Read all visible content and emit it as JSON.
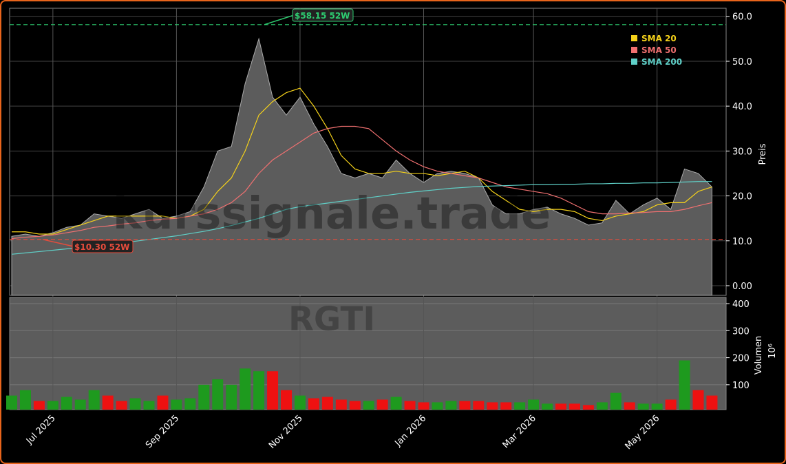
{
  "chart_data": [
    {
      "type": "line",
      "ticker": "RGTI",
      "watermark": "kurssignale.trade",
      "y_label": "Preis",
      "ylim": [
        -2.15,
        61.8
      ],
      "yticks": [
        {
          "value": 0,
          "label": "0.00"
        },
        {
          "value": 10,
          "label": "10.0"
        },
        {
          "value": 20,
          "label": "20.0"
        },
        {
          "value": 30,
          "label": "30.0"
        },
        {
          "value": 40,
          "label": "40.0"
        },
        {
          "value": 50,
          "label": "50.0"
        },
        {
          "value": 60,
          "label": "60.0"
        }
      ],
      "grid": true,
      "area_color": "#5c5c5c",
      "close": [
        11,
        11.5,
        11,
        11.8,
        13,
        13.5,
        16,
        15.5,
        15,
        16,
        17,
        15,
        15.5,
        16.5,
        22,
        30,
        31,
        45,
        55,
        42,
        38,
        42,
        36,
        31,
        25,
        24,
        25,
        24,
        28,
        25,
        23,
        25,
        25.5,
        25,
        24,
        18,
        16,
        16,
        17,
        17.5,
        16,
        15,
        13.5,
        14,
        19,
        16,
        18,
        19.5,
        17,
        26,
        25,
        22
      ],
      "series": [
        {
          "name": "SMA 20",
          "color": "#f5d21a",
          "values": [
            12,
            12,
            11.5,
            11.5,
            12.5,
            13.5,
            14.5,
            15.5,
            15.5,
            15.5,
            15.5,
            15.5,
            15,
            15.5,
            17,
            21,
            24,
            30,
            38,
            41,
            43,
            44,
            40,
            35,
            29,
            26,
            25,
            25,
            25.5,
            25,
            25,
            24.5,
            25,
            25.5,
            24,
            21,
            19,
            17,
            16.5,
            17,
            17,
            16.5,
            15,
            14.5,
            15.5,
            16,
            16.5,
            18,
            18.5,
            18.5,
            21,
            22
          ]
        },
        {
          "name": "SMA 50",
          "color": "#f07070",
          "values": [
            10.5,
            10.8,
            11,
            11.3,
            11.8,
            12.3,
            13,
            13.3,
            13.7,
            14,
            14.5,
            14.8,
            15,
            15.5,
            16,
            17,
            18.5,
            21,
            25,
            28,
            30,
            32,
            34,
            35,
            35.5,
            35.5,
            35,
            32.5,
            30,
            28,
            26.5,
            25.5,
            25,
            24.5,
            24,
            23,
            22,
            21.5,
            21,
            20.5,
            19.5,
            18,
            16.5,
            16,
            16,
            16.2,
            16.3,
            16.5,
            16.5,
            17,
            17.8,
            18.5
          ]
        },
        {
          "name": "SMA 200",
          "color": "#5fd0c8",
          "values": [
            7.0,
            7.3,
            7.6,
            7.9,
            8.2,
            8.5,
            8.8,
            9.1,
            9.5,
            9.9,
            10.3,
            10.7,
            11.1,
            11.6,
            12.1,
            12.7,
            13.4,
            14.2,
            15.0,
            16.0,
            17.0,
            17.6,
            18.0,
            18.4,
            18.8,
            19.2,
            19.6,
            20.0,
            20.4,
            20.8,
            21.1,
            21.4,
            21.7,
            21.9,
            22.1,
            22.2,
            22.3,
            22.4,
            22.5,
            22.5,
            22.6,
            22.6,
            22.7,
            22.7,
            22.8,
            22.8,
            22.9,
            22.9,
            23.0,
            23.1,
            23.2,
            23.2
          ]
        }
      ],
      "high": {
        "value": 58.15,
        "label": "$58.15 52W",
        "color": "#2ecc71"
      },
      "low": {
        "value": 10.3,
        "label": "$10.30 52W",
        "color": "#e74c3c"
      }
    },
    {
      "type": "bar",
      "y_label": "Volumen",
      "y_scale": "10⁶",
      "ylim": [
        8,
        423
      ],
      "yticks": [
        100,
        200,
        300,
        400
      ],
      "grid": true,
      "up_color": "#1e9a1e",
      "down_color": "#ee1111",
      "background": "#5c5c5c",
      "categories": [
        null,
        null,
        null,
        "Jul 2025",
        null,
        null,
        null,
        null,
        null,
        null,
        null,
        null,
        "Sep 2025",
        null,
        null,
        null,
        null,
        null,
        null,
        null,
        null,
        "Nov 2025",
        null,
        null,
        null,
        null,
        null,
        null,
        null,
        null,
        "Jan 2026",
        null,
        null,
        null,
        null,
        null,
        null,
        null,
        "Mar 2026",
        null,
        null,
        null,
        null,
        null,
        null,
        null,
        null,
        "May 2026",
        null,
        null,
        null,
        null
      ],
      "values": [
        60,
        80,
        40,
        40,
        55,
        45,
        80,
        60,
        40,
        50,
        40,
        60,
        45,
        50,
        100,
        120,
        100,
        160,
        150,
        150,
        80,
        60,
        50,
        55,
        45,
        40,
        40,
        45,
        55,
        40,
        35,
        35,
        40,
        40,
        40,
        35,
        35,
        35,
        45,
        30,
        30,
        30,
        25,
        35,
        70,
        35,
        30,
        30,
        45,
        190,
        80,
        60
      ]
    }
  ]
}
